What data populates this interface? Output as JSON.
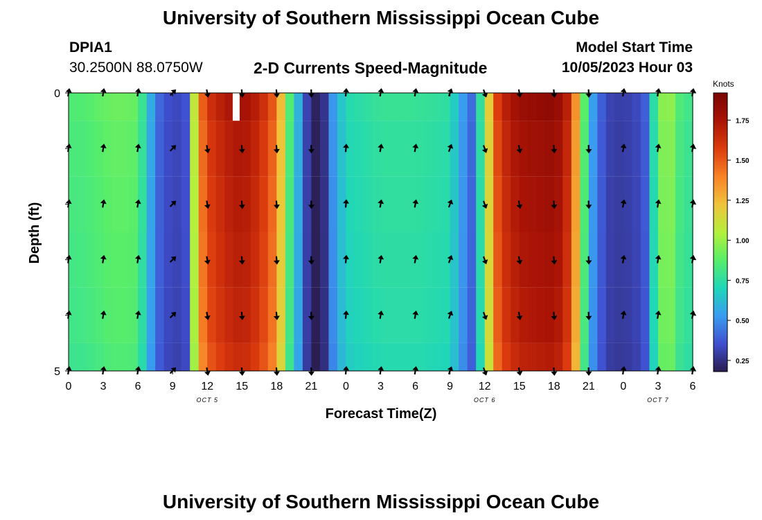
{
  "page": {
    "title_top": "University of Southern Mississippi Ocean Cube",
    "title_bottom": "University of Southern Mississippi Ocean Cube",
    "station_id": "DPIA1",
    "station_coords": "30.2500N  88.0750W",
    "plot_title": "2-D Currents Speed-Magnitude",
    "model_start_label": "Model Start Time",
    "model_start_value": "10/05/2023 Hour 03"
  },
  "chart_data": {
    "type": "heatmap",
    "title": "2-D Currents Speed-Magnitude",
    "xlabel": "Forecast Time(Z)",
    "ylabel": "Depth (ft)",
    "xlim": [
      0,
      54
    ],
    "ylim": [
      0,
      5
    ],
    "y_ticks": [
      "0",
      "",
      "",
      "",
      "",
      "5"
    ],
    "x_tick_labels": [
      "0",
      "3",
      "6",
      "9",
      "12",
      "15",
      "18",
      "21",
      "0",
      "3",
      "6",
      "9",
      "12",
      "15",
      "18",
      "21",
      "0",
      "3",
      "6"
    ],
    "date_labels": [
      {
        "label": "OCT 5",
        "x": 12
      },
      {
        "label": "OCT 6",
        "x": 36
      },
      {
        "label": "OCT 7",
        "x": 51
      }
    ],
    "colorbar": {
      "unit": "Knots",
      "min": 0.18,
      "max": 1.92,
      "ticks": [
        "0.25",
        "0.50",
        "0.75",
        "1.00",
        "1.25",
        "1.50",
        "1.75"
      ],
      "tick_values": [
        0.25,
        0.5,
        0.75,
        1.0,
        1.25,
        1.5,
        1.75
      ],
      "colors": [
        "#2a1c4e",
        "#3f4fd0",
        "#3a9cf0",
        "#1fd6b8",
        "#58ee6a",
        "#b4f03c",
        "#f0c33a",
        "#f88226",
        "#dc3c0e",
        "#aa1406",
        "#7a0402"
      ]
    },
    "speed_profile": {
      "hours": [
        0,
        1.5,
        3,
        4.5,
        6,
        7,
        8,
        9,
        10,
        10.5,
        11,
        12,
        13.5,
        15,
        16.5,
        18,
        19,
        20,
        20.5,
        21,
        22,
        22.5,
        24,
        27,
        30,
        33,
        34,
        35,
        36,
        37,
        38,
        39,
        42,
        43,
        44,
        45,
        46,
        47,
        48,
        49,
        50,
        51,
        52,
        53,
        54
      ],
      "speeds": [
        0.85,
        0.86,
        0.9,
        0.92,
        0.9,
        0.6,
        0.38,
        0.33,
        0.33,
        0.45,
        1.3,
        1.6,
        1.72,
        1.78,
        1.68,
        1.45,
        0.9,
        0.55,
        0.35,
        0.2,
        0.2,
        0.45,
        0.72,
        0.78,
        0.78,
        0.75,
        0.55,
        0.4,
        0.98,
        1.55,
        1.72,
        1.8,
        1.85,
        1.75,
        1.3,
        0.62,
        0.4,
        0.3,
        0.3,
        0.32,
        0.4,
        0.95,
        1.0,
        0.82,
        0.8
      ],
      "depth_factors": [
        1.0,
        0.98,
        0.97,
        0.96,
        0.95,
        0.93,
        0.9
      ],
      "depth_rows": [
        "0",
        "0.5",
        "1.5",
        "2.5",
        "3.5",
        "4.5",
        "5"
      ]
    },
    "arrows": {
      "hours": [
        0,
        3,
        6,
        9,
        12,
        15,
        18,
        21,
        24,
        27,
        30,
        33,
        36,
        39,
        42,
        45,
        48,
        51,
        54
      ],
      "depths": [
        0,
        1,
        2,
        3,
        4,
        5
      ],
      "directions_deg": [
        10,
        10,
        10,
        45,
        170,
        175,
        175,
        178,
        5,
        10,
        10,
        20,
        160,
        170,
        175,
        178,
        10,
        10,
        10
      ]
    },
    "missing_data": [
      {
        "x_start": 14.2,
        "x_end": 14.8,
        "y_start": 0,
        "y_end": 0.5
      }
    ]
  }
}
